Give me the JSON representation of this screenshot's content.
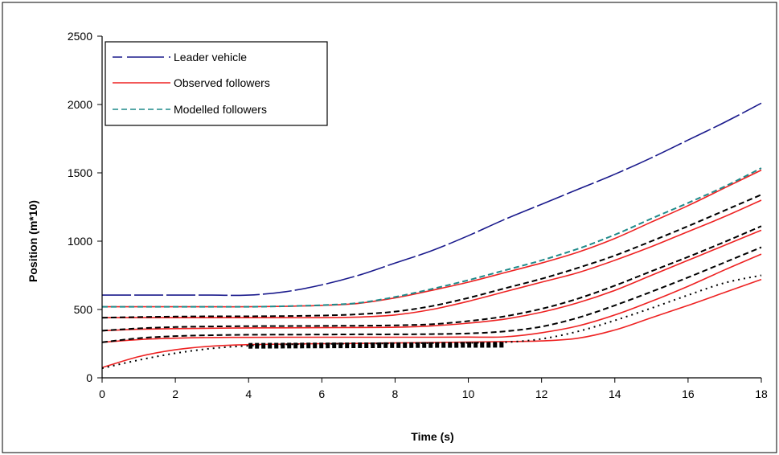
{
  "chart_data": {
    "type": "line",
    "xlabel": "Time (s)",
    "ylabel": "Position (m*10)",
    "xlim": [
      0,
      18
    ],
    "ylim": [
      0,
      2500
    ],
    "xticks": [
      0,
      2,
      4,
      6,
      8,
      10,
      12,
      14,
      16,
      18
    ],
    "yticks": [
      0,
      500,
      1000,
      1500,
      2000,
      2500
    ],
    "grid": false,
    "legend_position": "top-left",
    "legend": [
      {
        "label": "Leader vehicle",
        "color": "#1a1a8c",
        "style": "long-dash"
      },
      {
        "label": "Observed followers",
        "color": "#ee2222",
        "style": "solid"
      },
      {
        "label": "Modelled followers",
        "color": "#1f8a8a",
        "style": "dashed"
      }
    ],
    "x": [
      0,
      1,
      2,
      3,
      4,
      5,
      6,
      7,
      8,
      9,
      10,
      11,
      12,
      13,
      14,
      15,
      16,
      17,
      18
    ],
    "series": [
      {
        "name": "Leader vehicle",
        "kind": "leader",
        "color": "#1a1a8c",
        "style": "long-dash",
        "values": [
          605,
          605,
          605,
          605,
          605,
          630,
          680,
          750,
          840,
          930,
          1040,
          1160,
          1270,
          1380,
          1490,
          1610,
          1740,
          1870,
          2010
        ]
      },
      {
        "kind": "observed",
        "color": "#ee2222",
        "values": [
          520,
          520,
          520,
          520,
          520,
          523,
          530,
          545,
          585,
          640,
          700,
          770,
          840,
          920,
          1020,
          1140,
          1260,
          1390,
          1520
        ]
      },
      {
        "kind": "modelled",
        "color": "#1f8a8a",
        "style": "dashed",
        "values": [
          520,
          520,
          520,
          520,
          520,
          524,
          532,
          548,
          592,
          650,
          715,
          787,
          860,
          945,
          1047,
          1165,
          1280,
          1400,
          1535
        ]
      },
      {
        "kind": "observed",
        "color": "#ee2222",
        "values": [
          440,
          440,
          440,
          440,
          440,
          440,
          440,
          445,
          460,
          500,
          560,
          630,
          700,
          770,
          860,
          960,
          1070,
          1180,
          1300
        ]
      },
      {
        "kind": "modelled",
        "color": "#000000",
        "style": "dashed",
        "values": [
          440,
          445,
          448,
          450,
          450,
          452,
          456,
          465,
          485,
          525,
          585,
          655,
          725,
          805,
          895,
          1000,
          1110,
          1225,
          1340
        ]
      },
      {
        "kind": "observed",
        "color": "#ee2222",
        "values": [
          345,
          355,
          360,
          363,
          365,
          366,
          367,
          368,
          370,
          380,
          400,
          430,
          480,
          550,
          640,
          750,
          860,
          970,
          1080
        ]
      },
      {
        "kind": "modelled",
        "color": "#000000",
        "style": "dashed",
        "values": [
          345,
          362,
          372,
          376,
          378,
          379,
          380,
          381,
          384,
          392,
          415,
          450,
          505,
          580,
          675,
          780,
          885,
          995,
          1110
        ]
      },
      {
        "kind": "observed",
        "color": "#ee2222",
        "values": [
          260,
          280,
          290,
          295,
          296,
          297,
          297,
          297,
          297,
          297,
          298,
          300,
          330,
          380,
          460,
          560,
          670,
          790,
          905
        ]
      },
      {
        "kind": "modelled",
        "color": "#000000",
        "style": "dashed",
        "values": [
          260,
          290,
          305,
          312,
          315,
          316,
          317,
          318,
          318,
          320,
          325,
          340,
          375,
          440,
          530,
          630,
          735,
          845,
          955
        ]
      },
      {
        "kind": "observed",
        "color": "#ee2222",
        "values": [
          75,
          155,
          205,
          232,
          243,
          247,
          250,
          252,
          255,
          258,
          262,
          265,
          270,
          290,
          350,
          440,
          530,
          625,
          720
        ]
      },
      {
        "kind": "modelled",
        "color": "#000000",
        "style": "dotted",
        "values": [
          70,
          130,
          180,
          215,
          235,
          245,
          248,
          250,
          252,
          254,
          256,
          260,
          285,
          340,
          420,
          510,
          605,
          695,
          750
        ]
      },
      {
        "kind": "modelled",
        "color": "#000000",
        "style": "block",
        "values": [
          null,
          null,
          null,
          null,
          234,
          236,
          237,
          238,
          239,
          240,
          241,
          242,
          null,
          null,
          null,
          null,
          null,
          null,
          null
        ]
      }
    ]
  }
}
